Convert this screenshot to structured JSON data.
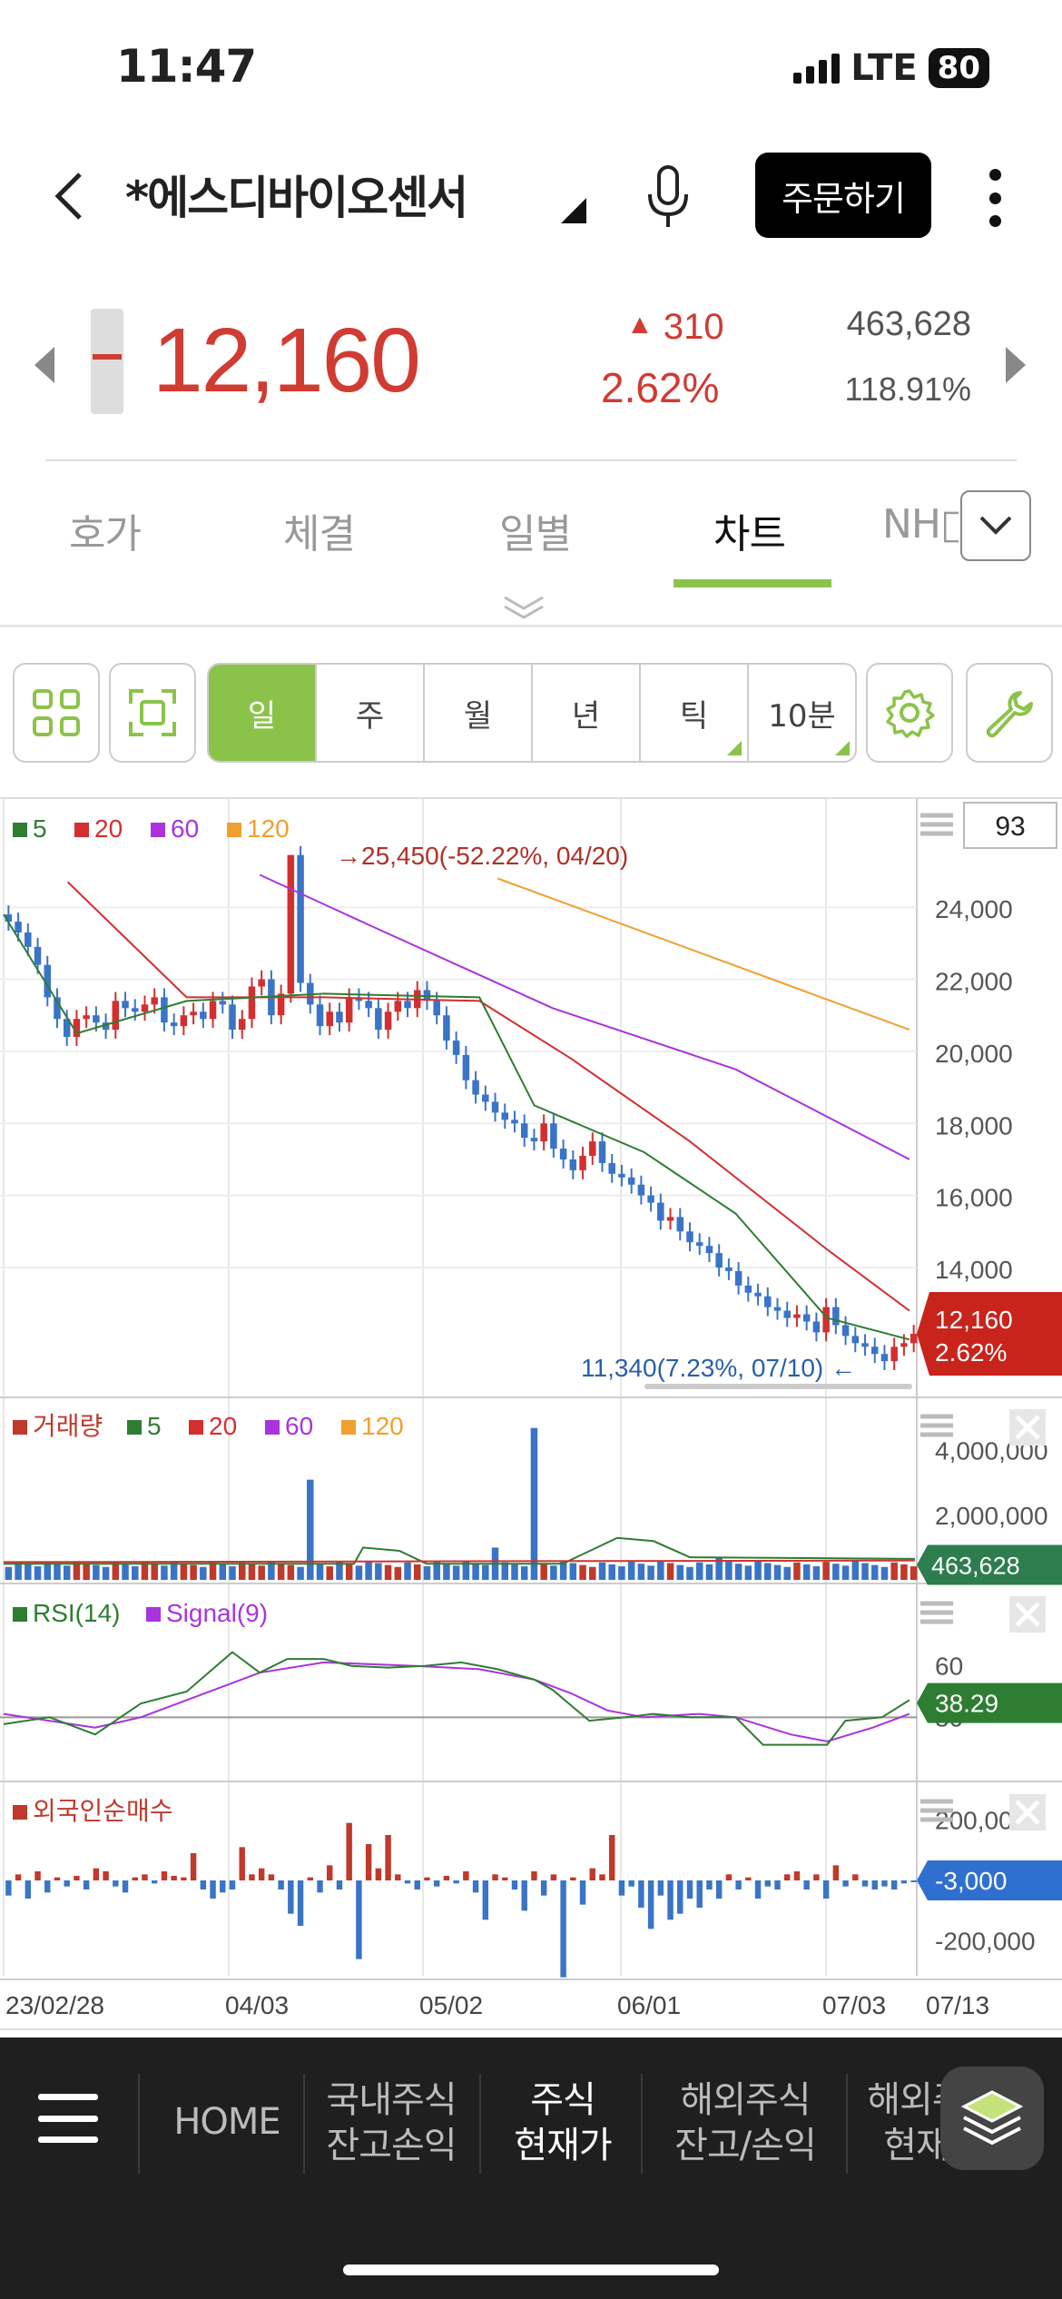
{
  "status_bar": {
    "time": "11:47",
    "network": "LTE",
    "battery": "80"
  },
  "header": {
    "title": "*에스디바이오센서",
    "order_button": "주문하기"
  },
  "quote": {
    "price": "12,160",
    "change": "310",
    "change_arrow": "▲",
    "change_pct": "2.62%",
    "volume": "463,628",
    "volume_ratio": "118.91%",
    "color_up": "#d03b32"
  },
  "tabs": [
    {
      "label": "호가"
    },
    {
      "label": "체결"
    },
    {
      "label": "일별"
    },
    {
      "label": "차트",
      "active": true
    },
    {
      "label": "NH□"
    }
  ],
  "periods": [
    {
      "label": "일",
      "active": true
    },
    {
      "label": "주"
    },
    {
      "label": "월"
    },
    {
      "label": "년"
    },
    {
      "label": "틱"
    },
    {
      "label": "10분"
    }
  ],
  "chart_data": {
    "type": "candlestick",
    "x_tick_labels": [
      "23/02/28",
      "04/03",
      "05/02",
      "06/01",
      "07/03",
      "07/13"
    ],
    "price_panel": {
      "legend": [
        "5",
        "20",
        "60",
        "120"
      ],
      "legend_colors": [
        "#2e7d32",
        "#d32f2f",
        "#aa33dd",
        "#f0a030"
      ],
      "y_ticks": [
        "24,000",
        "22,000",
        "20,000",
        "18,000",
        "16,000",
        "14,000"
      ],
      "y_range": [
        11000,
        26500
      ],
      "count_box": "93",
      "high_annotation": "25,450(-52.22%, 04/20)",
      "low_annotation": "11,340(7.23%, 07/10)",
      "current_price": "12,160",
      "current_pct": "2.62%",
      "ma120": [
        [
          0.54,
          24800
        ],
        [
          0.99,
          20600
        ]
      ],
      "ma60": [
        [
          0.28,
          24900
        ],
        [
          0.4,
          23500
        ],
        [
          0.6,
          21200
        ],
        [
          0.8,
          19500
        ],
        [
          0.99,
          17000
        ]
      ],
      "ma20": [
        [
          0.07,
          24700
        ],
        [
          0.2,
          21500
        ],
        [
          0.35,
          21500
        ],
        [
          0.52,
          21400
        ],
        [
          0.62,
          19800
        ],
        [
          0.75,
          17500
        ],
        [
          0.9,
          14500
        ],
        [
          0.99,
          12800
        ]
      ],
      "ma5": [
        [
          0.0,
          23800
        ],
        [
          0.08,
          20500
        ],
        [
          0.2,
          21400
        ],
        [
          0.35,
          21600
        ],
        [
          0.52,
          21500
        ],
        [
          0.58,
          18500
        ],
        [
          0.7,
          17200
        ],
        [
          0.8,
          15500
        ],
        [
          0.9,
          12600
        ],
        [
          0.99,
          12000
        ]
      ],
      "closes": [
        23600,
        23300,
        22900,
        22400,
        21500,
        20900,
        20400,
        20900,
        21000,
        20800,
        20600,
        21400,
        21200,
        21100,
        21300,
        21500,
        20800,
        20700,
        21000,
        21100,
        20900,
        21400,
        21300,
        20600,
        20900,
        21800,
        22000,
        21000,
        21600,
        25450,
        21900,
        21300,
        20700,
        21100,
        20800,
        21500,
        21400,
        21200,
        20600,
        21100,
        21400,
        21200,
        21700,
        21400,
        21000,
        20300,
        19900,
        19200,
        18800,
        18600,
        18300,
        18100,
        18000,
        17600,
        17500,
        18000,
        17300,
        17000,
        16700,
        17100,
        17500,
        16900,
        16600,
        16500,
        16300,
        16000,
        15800,
        15300,
        15400,
        15000,
        14700,
        14600,
        14400,
        14000,
        13900,
        13500,
        13300,
        13200,
        12900,
        12800,
        12600,
        12700,
        12500,
        12200,
        12900,
        12400,
        12100,
        11900,
        11800,
        11600,
        11400,
        11800,
        11900,
        12160
      ]
    },
    "volume_panel": {
      "legend": [
        "거래량",
        "5",
        "20",
        "60",
        "120"
      ],
      "legend_colors": [
        "#c0392b",
        "#2e7d32",
        "#d32f2f",
        "#aa33dd",
        "#f0a030"
      ],
      "y_ticks": [
        "4,000,000",
        "2,000,000"
      ],
      "current": "463,628",
      "spikes": [
        {
          "x": 0.336,
          "value": 3100000
        },
        {
          "x": 0.577,
          "value": 4700000
        },
        {
          "x": 0.536,
          "value": 1000000
        },
        {
          "x": 0.78,
          "value": 700000
        }
      ],
      "base_value": 500000
    },
    "rsi_panel": {
      "legend": [
        "RSI(14)",
        "Signal(9)"
      ],
      "legend_colors": [
        "#2e7d32",
        "#aa33dd"
      ],
      "y_ticks": [
        "60",
        "30"
      ],
      "current": "38.29"
    },
    "foreign_panel": {
      "legend": [
        "외국인순매수"
      ],
      "legend_colors": [
        "#c0392b"
      ],
      "y_ticks": [
        "200,000",
        "-200,000"
      ],
      "current": "-3,000",
      "values": [
        -50000,
        20000,
        -60000,
        30000,
        -40000,
        10000,
        -20000,
        15000,
        -30000,
        40000,
        30000,
        -20000,
        -40000,
        10000,
        20000,
        -10000,
        30000,
        15000,
        10000,
        90000,
        -30000,
        -60000,
        -40000,
        -30000,
        110000,
        20000,
        40000,
        20000,
        -30000,
        -110000,
        -150000,
        10000,
        -40000,
        50000,
        -30000,
        190000,
        -260000,
        120000,
        40000,
        150000,
        20000,
        -10000,
        -30000,
        10000,
        -20000,
        15000,
        -10000,
        30000,
        -40000,
        -130000,
        20000,
        10000,
        -30000,
        -100000,
        30000,
        -50000,
        20000,
        -320000,
        10000,
        -80000,
        40000,
        20000,
        150000,
        -50000,
        -20000,
        -90000,
        -160000,
        -50000,
        -130000,
        -110000,
        -60000,
        -90000,
        -30000,
        -60000,
        20000,
        -30000,
        10000,
        -60000,
        -20000,
        -30000,
        20000,
        30000,
        -30000,
        20000,
        -60000,
        50000,
        -20000,
        20000,
        -20000,
        -30000,
        -20000,
        -30000,
        -10000,
        -3000
      ]
    }
  },
  "bottom_nav": {
    "items": [
      {
        "label": "HOME"
      },
      {
        "label": "국내주식\n잔고손익"
      },
      {
        "label": "주식\n현재가",
        "active": true
      },
      {
        "label": "해외주식\n잔고/손익"
      },
      {
        "label": "해외주\n현재"
      }
    ]
  }
}
